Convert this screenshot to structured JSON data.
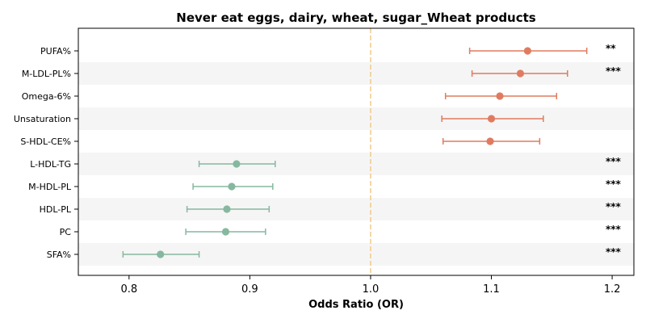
{
  "chart_data": {
    "type": "forest",
    "title": "Never eat eggs, dairy, wheat, sugar_Wheat products",
    "xlabel": "Odds Ratio (OR)",
    "xlim": [
      0.758,
      1.218
    ],
    "xticks": [
      0.8,
      0.9,
      1.0,
      1.1,
      1.2
    ],
    "xtick_labels": [
      "0.8",
      "0.9",
      "1.0",
      "1.1",
      "1.2"
    ],
    "reference_line": 1.0,
    "colors": {
      "positive": "#E07B5F",
      "negative": "#86B8A0",
      "reference": "#F2C98A",
      "stripe": "#F5F5F5"
    },
    "rows": [
      {
        "label": "PUFA%",
        "or": 1.13,
        "lower": 1.082,
        "upper": 1.179,
        "sig": "**"
      },
      {
        "label": "M-LDL-PL%",
        "or": 1.124,
        "lower": 1.084,
        "upper": 1.163,
        "sig": "***"
      },
      {
        "label": "Omega-6%",
        "or": 1.107,
        "lower": 1.062,
        "upper": 1.154,
        "sig": ""
      },
      {
        "label": "Unsaturation",
        "or": 1.1,
        "lower": 1.059,
        "upper": 1.143,
        "sig": ""
      },
      {
        "label": "S-HDL-CE%",
        "or": 1.099,
        "lower": 1.06,
        "upper": 1.14,
        "sig": ""
      },
      {
        "label": "L-HDL-TG",
        "or": 0.889,
        "lower": 0.858,
        "upper": 0.921,
        "sig": "***"
      },
      {
        "label": "M-HDL-PL",
        "or": 0.885,
        "lower": 0.853,
        "upper": 0.919,
        "sig": "***"
      },
      {
        "label": "HDL-PL",
        "or": 0.881,
        "lower": 0.848,
        "upper": 0.916,
        "sig": "***"
      },
      {
        "label": "PC",
        "or": 0.88,
        "lower": 0.847,
        "upper": 0.913,
        "sig": "***"
      },
      {
        "label": "SFA%",
        "or": 0.826,
        "lower": 0.795,
        "upper": 0.858,
        "sig": "***"
      }
    ]
  }
}
